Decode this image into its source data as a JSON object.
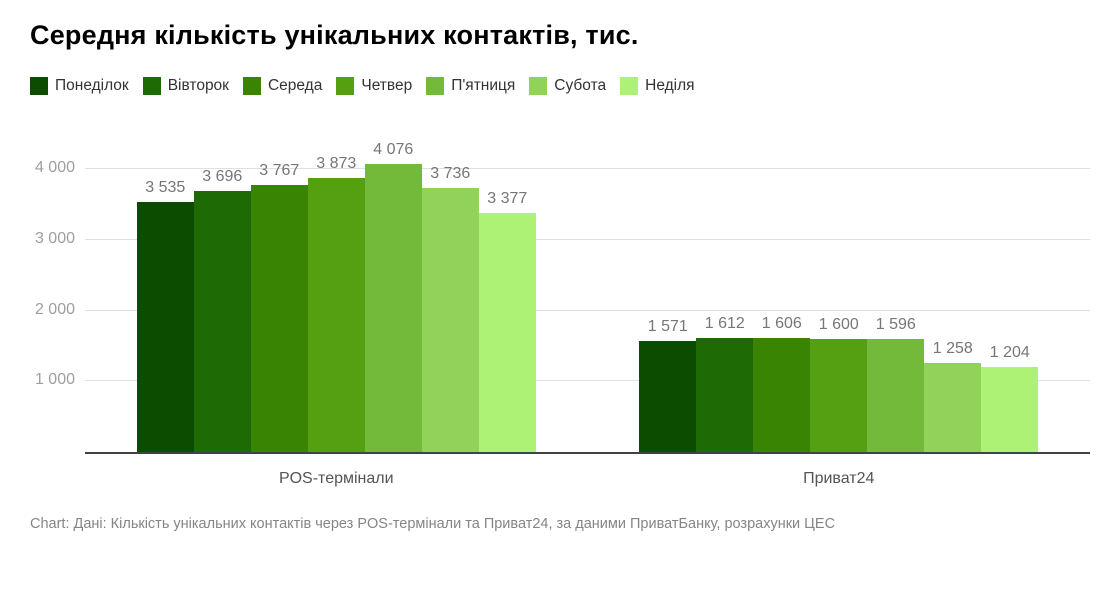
{
  "title": "Середня кількість унікальних контактів, тис.",
  "footer": {
    "note": "Chart: Дані: Кількість унікальних контактів через POS-термінали та Приват24, за даними ПриватБанку, розрахунки ЦЕС"
  },
  "chart_data": {
    "type": "bar",
    "title": "Середня кількість унікальних контактів, тис.",
    "categories": [
      "POS-термінали",
      "Приват24"
    ],
    "series": [
      {
        "name": "Понеділок",
        "color": "#0c4c00",
        "values": [
          3535,
          1571
        ],
        "labels": [
          "3 535",
          "1 571"
        ]
      },
      {
        "name": "Вівторок",
        "color": "#1e6a05",
        "values": [
          3696,
          1612
        ],
        "labels": [
          "3 696",
          "1 612"
        ]
      },
      {
        "name": "Середа",
        "color": "#3a8404",
        "values": [
          3767,
          1606
        ],
        "labels": [
          "3 767",
          "1 606"
        ]
      },
      {
        "name": "Четвер",
        "color": "#55a011",
        "values": [
          3873,
          1600
        ],
        "labels": [
          "3 873",
          "1 600"
        ]
      },
      {
        "name": "П'ятниця",
        "color": "#73b93a",
        "values": [
          4076,
          1596
        ],
        "labels": [
          "4 076",
          "1 596"
        ]
      },
      {
        "name": "Субота",
        "color": "#91d258",
        "values": [
          3736,
          1258
        ],
        "labels": [
          "3 736",
          "1 258"
        ]
      },
      {
        "name": "Неділя",
        "color": "#adf175",
        "values": [
          3377,
          1204
        ],
        "labels": [
          "3 377",
          "1 204"
        ]
      }
    ],
    "yticks": [
      {
        "value": 1000,
        "label": "1 000"
      },
      {
        "value": 2000,
        "label": "2 000"
      },
      {
        "value": 3000,
        "label": "3 000"
      },
      {
        "value": 4000,
        "label": "4 000"
      }
    ],
    "ylim": [
      0,
      4565
    ],
    "grid": true,
    "legend_position": "top",
    "axis_colors": {
      "gridline": "#e0e0e0",
      "baseline": "#424242",
      "tick_text": "#9e9e9e",
      "value_text": "#767676"
    }
  }
}
